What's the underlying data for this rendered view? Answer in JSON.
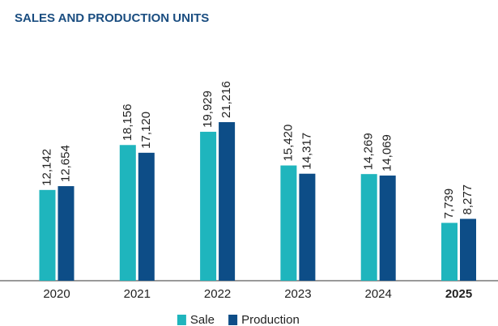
{
  "chart_data": {
    "type": "bar",
    "title": "SALES AND PRODUCTION UNITS",
    "categories": [
      "2020",
      "2021",
      "2022",
      "2023",
      "2024",
      "2025"
    ],
    "series": [
      {
        "name": "Sale",
        "color": "#1fb5bd",
        "values": [
          12142,
          18156,
          19929,
          15420,
          14269,
          7739
        ],
        "value_labels": [
          "12,142",
          "18,156",
          "19,929",
          "15,420",
          "14,269",
          "7,739"
        ]
      },
      {
        "name": "Production",
        "color": "#0d4d87",
        "values": [
          12654,
          17120,
          21216,
          14317,
          14069,
          8277
        ],
        "value_labels": [
          "12,654",
          "17,120",
          "21,216",
          "14,317",
          "14,069",
          "8,277"
        ]
      }
    ]
  }
}
